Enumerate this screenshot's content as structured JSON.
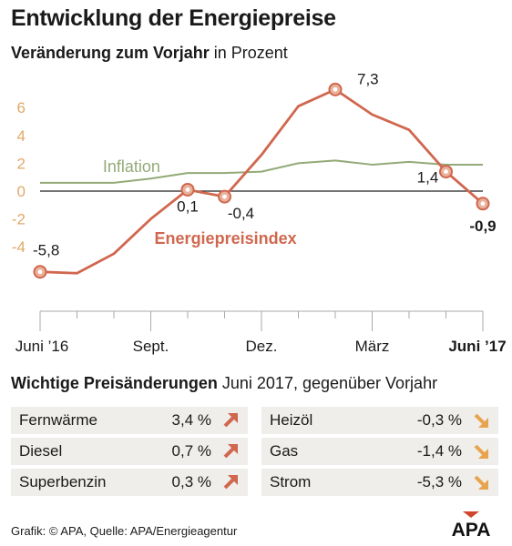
{
  "title": "Entwicklung der Energiepreise",
  "subtitle_bold": "Veränderung zum Vorjahr",
  "subtitle_rest": " in Prozent",
  "chart_data": {
    "type": "line",
    "ylim": [
      -8.5,
      8.5
    ],
    "ytick_labels": [
      "6",
      "4",
      "2",
      "0",
      "-2",
      "-4"
    ],
    "ytick_values": [
      6,
      4,
      2,
      0,
      -2,
      -4
    ],
    "xtick_labels": [
      "Juni ’16",
      "Sept.",
      "Dez.",
      "März",
      "Juni ’17"
    ],
    "xtick_index": [
      0,
      3,
      6,
      9,
      12
    ],
    "months": [
      "Jun 16",
      "Jul 16",
      "Aug 16",
      "Sep 16",
      "Okt 16",
      "Nov 16",
      "Dez 16",
      "Jan 17",
      "Feb 17",
      "Mär 17",
      "Apr 17",
      "Mai 17",
      "Jun 17"
    ],
    "series": [
      {
        "name": "Inflation",
        "color": "#93aa78",
        "values": [
          0.6,
          0.6,
          0.6,
          0.9,
          1.3,
          1.3,
          1.4,
          2.0,
          2.2,
          1.9,
          2.1,
          1.9,
          1.9
        ]
      },
      {
        "name": "Energiepreisindex",
        "color": "#d0674e",
        "values": [
          -5.8,
          -5.9,
          -4.5,
          -2.0,
          0.1,
          -0.4,
          2.6,
          6.1,
          7.3,
          5.5,
          4.4,
          1.4,
          -0.9
        ]
      }
    ],
    "markers": [
      {
        "index": 0,
        "label": "-5,8"
      },
      {
        "index": 4,
        "label": "0,1"
      },
      {
        "index": 5,
        "label": "-0,4"
      },
      {
        "index": 8,
        "label": "7,3"
      },
      {
        "index": 11,
        "label": "1,4"
      },
      {
        "index": 12,
        "label": "-0,9"
      }
    ],
    "grid": false
  },
  "table": {
    "head_bold": "Wichtige Preisänderungen",
    "head_rest": " Juni 2017, gegenüber Vorjahr",
    "left": [
      {
        "name": "Fernwärme",
        "value": "3,4 %",
        "dir": "up"
      },
      {
        "name": "Diesel",
        "value": "0,7 %",
        "dir": "up"
      },
      {
        "name": "Superbenzin",
        "value": "0,3 %",
        "dir": "up"
      }
    ],
    "right": [
      {
        "name": "Heizöl",
        "value": "-0,3 %",
        "dir": "down"
      },
      {
        "name": "Gas",
        "value": "-1,4 %",
        "dir": "down"
      },
      {
        "name": "Strom",
        "value": "-5,3 %",
        "dir": "down"
      }
    ]
  },
  "colors": {
    "up_arrow": "#d0674e",
    "down_arrow": "#e8a34e",
    "row_bg": "#efeeea",
    "axis_tick": "#e0a86a"
  },
  "footer": "Grafik: © APA, Quelle: APA/Energieagentur",
  "logo": "APA"
}
